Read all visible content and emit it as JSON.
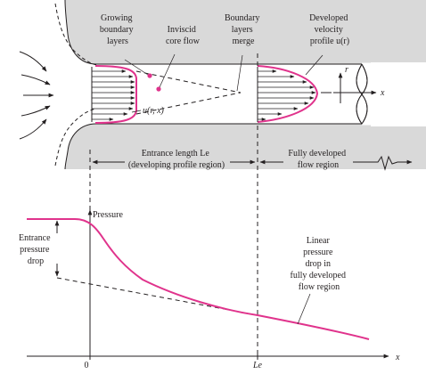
{
  "labels": {
    "growing_boundary_layers": [
      "Growing",
      "boundary",
      "layers"
    ],
    "inviscid_core_flow": [
      "Inviscid",
      "core flow"
    ],
    "boundary_layers_merge": [
      "Boundary",
      "layers",
      "merge"
    ],
    "developed_velocity_profile": [
      "Developed",
      "velocity",
      "profile u(r)"
    ],
    "u_r_x": "u(r, x)",
    "r_axis": "r",
    "x_axis_pipe": "x",
    "entrance_length": [
      "Entrance length Le",
      "(developing profile region)"
    ],
    "fully_developed_region": [
      "Fully developed",
      "flow region"
    ],
    "pressure_axis": "Pressure",
    "entrance_pressure_drop": [
      "Entrance",
      "pressure",
      "drop"
    ],
    "linear_pressure_drop": [
      "Linear",
      "pressure",
      "drop in",
      "fully developed",
      "flow region"
    ],
    "zero_tick": "0",
    "le_tick": "Le",
    "x_axis_graph": "x"
  },
  "colors": {
    "curve": "#e0338c",
    "ink": "#231f20",
    "wall_fill": "#d9d9d9"
  }
}
